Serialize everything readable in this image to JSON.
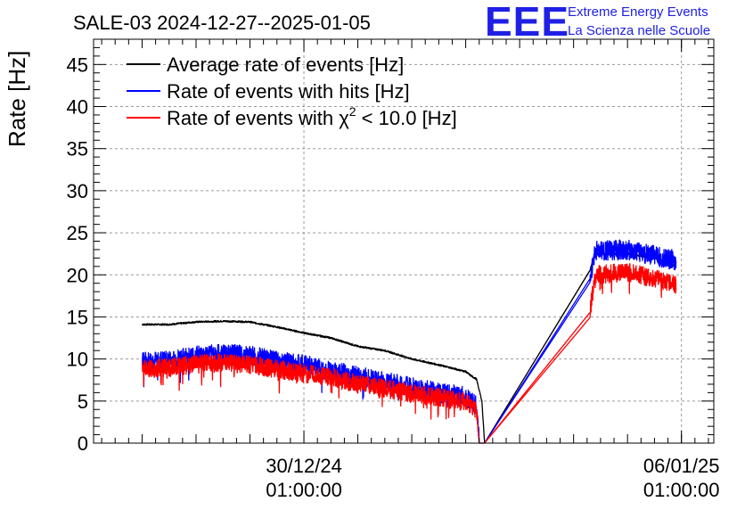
{
  "chart_data": {
    "type": "line",
    "title": "SALE-03 2024-12-27--2025-01-05",
    "xlabel": "",
    "ylabel": "Rate [Hz]",
    "ylim": [
      0,
      48
    ],
    "yticks": [
      0,
      5,
      10,
      15,
      20,
      25,
      30,
      35,
      40,
      45
    ],
    "xlim_days": [
      -3.9,
      7.6
    ],
    "xticks": [
      {
        "day": 0,
        "date": "30/12/24",
        "time": "01:00:00"
      },
      {
        "day": 7,
        "date": "06/01/25",
        "time": "01:00:00"
      }
    ],
    "grid": true,
    "legend_position": "top-left",
    "series": [
      {
        "name": "Average rate of events [Hz]",
        "color": "#000000",
        "x": [
          -3.0,
          -2.5,
          -2.0,
          -1.5,
          -1.0,
          -0.5,
          0.0,
          0.5,
          1.0,
          1.5,
          2.0,
          2.5,
          3.0,
          3.1,
          3.2,
          3.3,
          3.35,
          5.3,
          5.4,
          6.0,
          6.5,
          6.9
        ],
        "y": [
          14.1,
          14.1,
          14.4,
          14.5,
          14.4,
          13.8,
          13.1,
          12.5,
          11.5,
          11.0,
          10.0,
          9.3,
          8.5,
          8.0,
          7.6,
          5.0,
          0.0,
          20.5,
          22.5,
          22.5,
          22.0,
          21.0
        ],
        "noise": 0.1
      },
      {
        "name": "Rate of events with hits [Hz]",
        "color": "#0000ff",
        "x": [
          -3.0,
          -2.5,
          -2.0,
          -1.5,
          -1.0,
          -0.5,
          0.0,
          0.5,
          1.0,
          1.5,
          2.0,
          2.5,
          3.0,
          3.1,
          3.2,
          3.25,
          3.35,
          5.3,
          5.4,
          6.0,
          6.5,
          6.9
        ],
        "y": [
          9.6,
          9.8,
          10.4,
          10.6,
          10.4,
          9.7,
          9.3,
          8.6,
          7.9,
          7.3,
          6.6,
          6.0,
          5.5,
          5.0,
          4.3,
          0.0,
          0.0,
          19.5,
          22.8,
          23.0,
          22.3,
          21.7
        ],
        "noise": 1.2
      },
      {
        "name": "Rate of events with χ² < 10.0 [Hz]",
        "color": "#ff0000",
        "x": [
          -3.0,
          -2.5,
          -2.0,
          -1.5,
          -1.0,
          -0.5,
          0.0,
          0.5,
          1.0,
          1.5,
          2.0,
          2.5,
          3.0,
          3.1,
          3.2,
          3.25,
          3.35,
          5.3,
          5.4,
          6.0,
          6.5,
          6.9
        ],
        "y": [
          8.8,
          9.0,
          9.4,
          9.6,
          9.3,
          8.8,
          8.3,
          7.8,
          7.0,
          6.5,
          5.9,
          5.4,
          4.9,
          4.6,
          4.0,
          0.0,
          0.0,
          15.5,
          20.0,
          20.3,
          19.6,
          18.8
        ],
        "noise": 1.1
      }
    ]
  },
  "legend": {
    "items": [
      {
        "label_main": "Average rate of events [Hz]",
        "label_sup": "",
        "label_tail": "",
        "color": "#000000"
      },
      {
        "label_main": "Rate of events with hits [Hz]",
        "label_sup": "",
        "label_tail": "",
        "color": "#0000ff"
      },
      {
        "label_main": "Rate of events with χ",
        "label_sup": "2",
        "label_tail": " < 10.0 [Hz]",
        "color": "#ff0000"
      }
    ]
  },
  "logo": {
    "mark": "EEE",
    "line1": "Extreme Energy Events",
    "line2": "La Scienza nelle Scuole",
    "color": "#1f1fe6"
  }
}
